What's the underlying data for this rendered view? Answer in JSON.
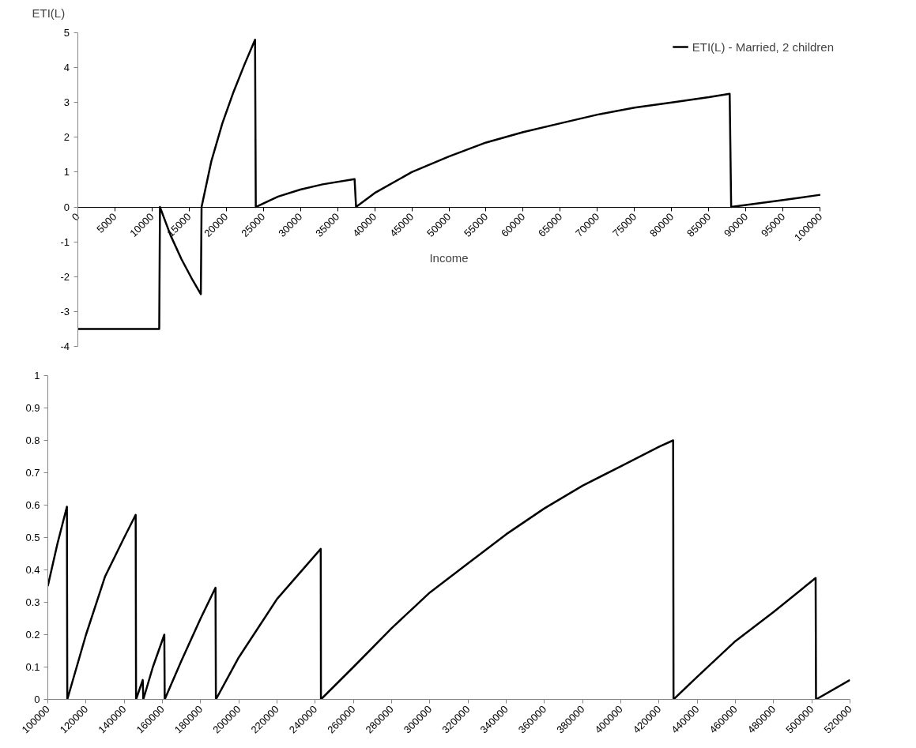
{
  "chart_data": [
    {
      "type": "line",
      "ylabel": "ETI(L)",
      "xlabel": "Income",
      "legend": "top right",
      "xlim": [
        0,
        100000
      ],
      "ylim": [
        -4,
        5
      ],
      "xticks": [
        0,
        5000,
        10000,
        15000,
        20000,
        25000,
        30000,
        35000,
        40000,
        45000,
        50000,
        55000,
        60000,
        65000,
        70000,
        75000,
        80000,
        85000,
        90000,
        95000,
        100000
      ],
      "yticks": [
        -4,
        -3,
        -2,
        -1,
        0,
        1,
        2,
        3,
        4,
        5
      ],
      "x": [
        0,
        11000,
        11100,
        12500,
        14000,
        15500,
        16600,
        16700,
        18000,
        19500,
        21000,
        22500,
        23900,
        24000,
        27000,
        30000,
        33000,
        37300,
        37500,
        40000,
        45000,
        50000,
        55000,
        60000,
        65000,
        70000,
        75000,
        80000,
        85000,
        87800,
        88000,
        95000,
        100000
      ],
      "series": [
        {
          "name": "ETI(L) - Married, 2 children",
          "color": "#000000",
          "values": [
            -3.5,
            -3.5,
            0,
            -0.8,
            -1.5,
            -2.1,
            -2.5,
            0,
            1.3,
            2.4,
            3.3,
            4.1,
            4.8,
            0,
            0.3,
            0.5,
            0.65,
            0.8,
            0,
            0.4,
            1.0,
            1.45,
            1.85,
            2.15,
            2.4,
            2.65,
            2.85,
            3.0,
            3.15,
            3.25,
            0,
            0.2,
            0.35
          ]
        }
      ]
    },
    {
      "type": "line",
      "xlim": [
        100000,
        520000
      ],
      "ylim": [
        0,
        1
      ],
      "xticks": [
        100000,
        120000,
        140000,
        160000,
        180000,
        200000,
        220000,
        240000,
        260000,
        280000,
        300000,
        320000,
        340000,
        360000,
        380000,
        400000,
        420000,
        440000,
        460000,
        480000,
        500000,
        520000
      ],
      "yticks": [
        0,
        0.1,
        0.2,
        0.3,
        0.4,
        0.5,
        0.6,
        0.7,
        0.8,
        0.9,
        1
      ],
      "x": [
        100000,
        105000,
        110000,
        110200,
        120000,
        130000,
        140000,
        146000,
        146200,
        149700,
        150000,
        155000,
        161000,
        161200,
        170000,
        180000,
        187800,
        188000,
        200000,
        220000,
        242900,
        243000,
        260000,
        280000,
        300000,
        320000,
        340000,
        360000,
        380000,
        400000,
        420000,
        427400,
        427600,
        440000,
        460000,
        480000,
        502000,
        502200,
        520000
      ],
      "series": [
        {
          "color": "#000000",
          "values": [
            0.35,
            0.48,
            0.595,
            0,
            0.2,
            0.38,
            0.5,
            0.57,
            0,
            0.06,
            0,
            0.1,
            0.2,
            0,
            0.12,
            0.25,
            0.345,
            0,
            0.13,
            0.31,
            0.465,
            0,
            0.1,
            0.22,
            0.33,
            0.42,
            0.51,
            0.59,
            0.66,
            0.72,
            0.78,
            0.8,
            0,
            0.07,
            0.18,
            0.27,
            0.375,
            0,
            0.06
          ]
        }
      ]
    }
  ]
}
